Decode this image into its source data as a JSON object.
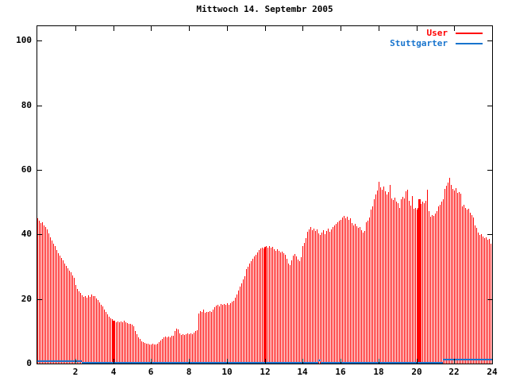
{
  "chart": {
    "title": "Mittwoch 14. Septembr 2005",
    "background_color": "#ffffff",
    "axis_color": "#000000",
    "legend": [
      {
        "id": "user",
        "label": "User",
        "color": "#ff0000"
      },
      {
        "id": "stuttgarter",
        "label": "Stuttgarter",
        "color": "#1874cd"
      }
    ]
  },
  "chart_data": {
    "type": "bar",
    "title": "Mittwoch 14. Septembr 2005",
    "xlabel": "",
    "ylabel": "",
    "xlim": [
      0,
      24
    ],
    "ylim": [
      0,
      104.5
    ],
    "grid": false,
    "legend_position": "top-right",
    "x_ticks": [
      {
        "value": 2,
        "label": "2"
      },
      {
        "value": 4,
        "label": "4"
      },
      {
        "value": 6,
        "label": "6"
      },
      {
        "value": 8,
        "label": "8"
      },
      {
        "value": 10,
        "label": "10"
      },
      {
        "value": 12,
        "label": "12"
      },
      {
        "value": 14,
        "label": "14"
      },
      {
        "value": 16,
        "label": "16"
      },
      {
        "value": 18,
        "label": "18"
      },
      {
        "value": 20,
        "label": "20"
      },
      {
        "value": 22,
        "label": "22"
      },
      {
        "value": 24,
        "label": "24"
      }
    ],
    "y_ticks": [
      {
        "value": 0,
        "label": "0"
      },
      {
        "value": 20,
        "label": "20"
      },
      {
        "value": 40,
        "label": "40"
      },
      {
        "value": 60,
        "label": "60"
      },
      {
        "value": 80,
        "label": "80"
      },
      {
        "value": 100,
        "label": "100"
      }
    ],
    "sample_interval_hours": 0.0833333,
    "series": [
      {
        "name": "User",
        "style": "impulses",
        "color": "#ff0000",
        "wide_indices": [
          48,
          144,
          242
        ],
        "values": [
          45.0,
          44.2,
          43.5,
          43.8,
          42.9,
          42.2,
          41.5,
          40.3,
          39.2,
          38.1,
          37.2,
          36.3,
          35.2,
          34.3,
          33.5,
          32.8,
          32.0,
          31.1,
          30.2,
          29.5,
          28.8,
          28.2,
          27.3,
          26.6,
          24.3,
          23.2,
          22.4,
          21.8,
          21.2,
          20.6,
          20.9,
          20.3,
          21.1,
          20.7,
          21.4,
          20.8,
          20.9,
          20.2,
          19.6,
          18.9,
          18.2,
          17.6,
          16.8,
          16.1,
          15.3,
          14.6,
          14.1,
          13.7,
          13.2,
          13.4,
          12.9,
          13.1,
          12.7,
          13.0,
          12.8,
          13.2,
          12.9,
          12.6,
          12.4,
          12.2,
          12.0,
          11.6,
          10.2,
          9.0,
          8.2,
          7.6,
          7.0,
          6.6,
          6.3,
          6.1,
          6.2,
          6.0,
          5.9,
          6.1,
          5.8,
          6.0,
          6.2,
          6.6,
          7.1,
          7.7,
          8.1,
          8.3,
          8.0,
          8.4,
          8.2,
          8.5,
          8.7,
          10.2,
          10.7,
          10.5,
          9.4,
          8.9,
          9.2,
          8.8,
          9.1,
          9.3,
          9.0,
          9.4,
          9.2,
          9.5,
          10.1,
          10.4,
          15.6,
          16.2,
          15.9,
          16.6,
          15.8,
          16.0,
          15.9,
          16.3,
          16.0,
          16.8,
          17.4,
          17.9,
          18.2,
          17.8,
          18.4,
          18.1,
          18.5,
          18.3,
          18.6,
          18.2,
          18.8,
          19.1,
          19.5,
          20.3,
          21.4,
          22.6,
          23.8,
          24.9,
          26.1,
          27.0,
          29.3,
          30.1,
          31.0,
          31.8,
          32.4,
          33.2,
          33.8,
          34.5,
          35.1,
          35.6,
          36.0,
          35.7,
          36.2,
          36.5,
          35.9,
          36.3,
          35.8,
          36.1,
          35.4,
          35.0,
          35.3,
          34.8,
          34.4,
          34.6,
          34.2,
          33.6,
          32.4,
          31.1,
          30.6,
          31.9,
          33.4,
          34.0,
          33.1,
          32.2,
          31.8,
          33.0,
          36.5,
          37.4,
          38.9,
          40.8,
          41.6,
          42.3,
          41.2,
          41.8,
          41.0,
          41.5,
          40.4,
          39.8,
          40.6,
          41.3,
          40.2,
          41.0,
          41.9,
          40.7,
          41.5,
          42.2,
          42.8,
          43.3,
          43.8,
          44.2,
          44.6,
          45.2,
          45.8,
          44.9,
          45.5,
          44.4,
          45.0,
          43.6,
          42.9,
          43.2,
          42.5,
          42.0,
          42.3,
          41.4,
          40.6,
          41.1,
          43.7,
          44.3,
          45.3,
          47.8,
          48.8,
          50.9,
          52.4,
          53.6,
          56.4,
          54.7,
          53.8,
          54.9,
          53.3,
          52.4,
          53.0,
          55.3,
          51.2,
          50.6,
          51.3,
          50.2,
          49.6,
          48.3,
          50.9,
          51.6,
          51.2,
          53.4,
          53.9,
          50.4,
          48.9,
          51.8,
          47.9,
          48.2,
          47.6,
          48.1,
          50.8,
          49.3,
          50.2,
          49.6,
          50.4,
          53.9,
          47.2,
          45.4,
          46.1,
          45.7,
          46.4,
          47.1,
          48.6,
          49.2,
          50.1,
          50.8,
          54.2,
          55.1,
          56.0,
          57.6,
          55.4,
          54.1,
          53.7,
          54.4,
          52.9,
          53.2,
          52.5,
          48.6,
          49.1,
          48.3,
          47.7,
          48.0,
          46.8,
          45.9,
          45.2,
          42.7,
          42.1,
          40.5,
          39.8,
          40.2,
          39.4,
          38.8,
          39.0,
          38.3,
          38.6,
          37.2
        ]
      },
      {
        "name": "Stuttgarter",
        "style": "steps",
        "color": "#1874cd",
        "segments": [
          {
            "from": 0.0,
            "to": 2.35,
            "value": 0.8
          },
          {
            "from": 2.35,
            "to": 14.83,
            "value": 0.25
          },
          {
            "from": 14.83,
            "to": 14.96,
            "value": 1.0
          },
          {
            "from": 14.96,
            "to": 21.4,
            "value": 0.25
          },
          {
            "from": 21.4,
            "to": 24.0,
            "value": 1.3
          }
        ]
      }
    ]
  }
}
